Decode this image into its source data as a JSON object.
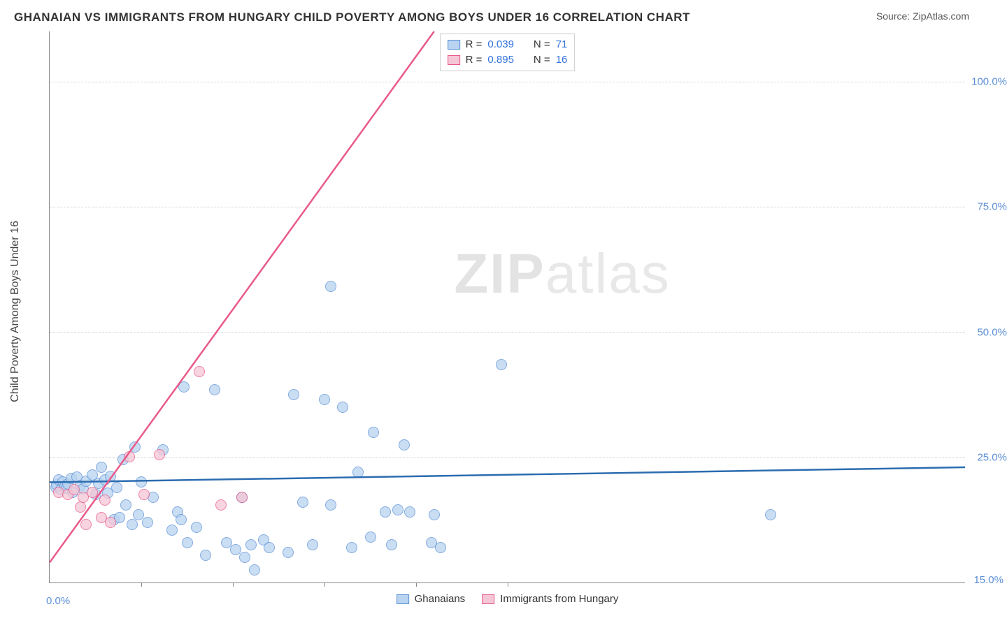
{
  "title": "GHANAIAN VS IMMIGRANTS FROM HUNGARY CHILD POVERTY AMONG BOYS UNDER 16 CORRELATION CHART",
  "source": "Source: ZipAtlas.com",
  "y_axis_title": "Child Poverty Among Boys Under 16",
  "watermark_zip": "ZIP",
  "watermark_atlas": "atlas",
  "chart": {
    "type": "scatter",
    "xlim": [
      0,
      15
    ],
    "ylim": [
      0,
      110
    ],
    "background_color": "#ffffff",
    "grid_color": "#d8d8d8",
    "y_ticks": [
      {
        "value": 25,
        "label": "25.0%"
      },
      {
        "value": 50,
        "label": "50.0%"
      },
      {
        "value": 75,
        "label": "75.0%"
      },
      {
        "value": 100,
        "label": "100.0%"
      }
    ],
    "x_tick_positions": [
      1.5,
      3.0,
      4.5,
      6.0,
      7.5
    ],
    "x_labels": [
      {
        "value": 0,
        "label": "0.0%"
      },
      {
        "value": 15,
        "label": "15.0%"
      }
    ],
    "point_radius": 8,
    "point_border_width": 1,
    "trend_line_width": 2.5
  },
  "series": [
    {
      "name": "Ghanaians",
      "fill": "#b8d4f0",
      "stroke": "#5b8fd6",
      "line_color": "#2b6cb0",
      "r_value": "0.039",
      "n_value": "71",
      "trend": {
        "x1": 0,
        "y1": 20,
        "x2": 15,
        "y2": 23
      },
      "points": [
        {
          "x": 0.1,
          "y": 19.0
        },
        {
          "x": 0.12,
          "y": 19.5
        },
        {
          "x": 0.15,
          "y": 20.5
        },
        {
          "x": 0.18,
          "y": 18.5
        },
        {
          "x": 0.22,
          "y": 20.0
        },
        {
          "x": 0.25,
          "y": 19.2
        },
        {
          "x": 0.28,
          "y": 18.8
        },
        {
          "x": 0.3,
          "y": 19.6
        },
        {
          "x": 0.35,
          "y": 20.8
        },
        {
          "x": 0.38,
          "y": 18.0
        },
        {
          "x": 0.45,
          "y": 21.0
        },
        {
          "x": 0.5,
          "y": 19.4
        },
        {
          "x": 0.55,
          "y": 18.6
        },
        {
          "x": 0.6,
          "y": 20.2
        },
        {
          "x": 0.7,
          "y": 21.5
        },
        {
          "x": 0.75,
          "y": 17.5
        },
        {
          "x": 0.8,
          "y": 19.8
        },
        {
          "x": 0.85,
          "y": 23.0
        },
        {
          "x": 0.9,
          "y": 20.5
        },
        {
          "x": 0.95,
          "y": 17.8
        },
        {
          "x": 1.0,
          "y": 21.2
        },
        {
          "x": 1.05,
          "y": 12.5
        },
        {
          "x": 1.1,
          "y": 19.0
        },
        {
          "x": 1.15,
          "y": 13.0
        },
        {
          "x": 1.2,
          "y": 24.5
        },
        {
          "x": 1.25,
          "y": 15.5
        },
        {
          "x": 1.35,
          "y": 11.5
        },
        {
          "x": 1.4,
          "y": 27.0
        },
        {
          "x": 1.45,
          "y": 13.5
        },
        {
          "x": 1.5,
          "y": 20.0
        },
        {
          "x": 1.6,
          "y": 12.0
        },
        {
          "x": 1.7,
          "y": 17.0
        },
        {
          "x": 1.85,
          "y": 26.5
        },
        {
          "x": 2.0,
          "y": 10.5
        },
        {
          "x": 2.1,
          "y": 14.0
        },
        {
          "x": 2.15,
          "y": 12.5
        },
        {
          "x": 2.2,
          "y": 39.0
        },
        {
          "x": 2.25,
          "y": 8.0
        },
        {
          "x": 2.4,
          "y": 11.0
        },
        {
          "x": 2.55,
          "y": 5.5
        },
        {
          "x": 2.7,
          "y": 38.5
        },
        {
          "x": 2.9,
          "y": 8.0
        },
        {
          "x": 3.05,
          "y": 6.5
        },
        {
          "x": 3.15,
          "y": 17.0
        },
        {
          "x": 3.2,
          "y": 5.0
        },
        {
          "x": 3.3,
          "y": 7.5
        },
        {
          "x": 3.35,
          "y": 2.5
        },
        {
          "x": 3.5,
          "y": 8.5
        },
        {
          "x": 3.6,
          "y": 7.0
        },
        {
          "x": 3.9,
          "y": 6.0
        },
        {
          "x": 4.0,
          "y": 37.5
        },
        {
          "x": 4.15,
          "y": 16.0
        },
        {
          "x": 4.3,
          "y": 7.5
        },
        {
          "x": 4.5,
          "y": 36.5
        },
        {
          "x": 4.6,
          "y": 59.0
        },
        {
          "x": 4.6,
          "y": 15.5
        },
        {
          "x": 4.8,
          "y": 35.0
        },
        {
          "x": 4.95,
          "y": 7.0
        },
        {
          "x": 5.05,
          "y": 22.0
        },
        {
          "x": 5.25,
          "y": 9.0
        },
        {
          "x": 5.3,
          "y": 30.0
        },
        {
          "x": 5.5,
          "y": 14.0
        },
        {
          "x": 5.6,
          "y": 7.5
        },
        {
          "x": 5.7,
          "y": 14.5
        },
        {
          "x": 5.8,
          "y": 27.5
        },
        {
          "x": 5.9,
          "y": 14.0
        },
        {
          "x": 6.25,
          "y": 8.0
        },
        {
          "x": 6.3,
          "y": 13.5
        },
        {
          "x": 6.4,
          "y": 7.0
        },
        {
          "x": 7.4,
          "y": 43.5
        },
        {
          "x": 11.8,
          "y": 13.5
        }
      ]
    },
    {
      "name": "Immigrants from Hungary",
      "fill": "#f5c6d5",
      "stroke": "#e85a8a",
      "line_color": "#e85a8a",
      "r_value": "0.895",
      "n_value": "16",
      "trend": {
        "x1": 0,
        "y1": 4,
        "x2": 6.3,
        "y2": 110
      },
      "points": [
        {
          "x": 0.15,
          "y": 18.0
        },
        {
          "x": 0.3,
          "y": 17.5
        },
        {
          "x": 0.4,
          "y": 18.5
        },
        {
          "x": 0.5,
          "y": 15.0
        },
        {
          "x": 0.55,
          "y": 17.0
        },
        {
          "x": 0.6,
          "y": 11.5
        },
        {
          "x": 0.7,
          "y": 18.0
        },
        {
          "x": 0.85,
          "y": 13.0
        },
        {
          "x": 0.9,
          "y": 16.5
        },
        {
          "x": 1.0,
          "y": 12.0
        },
        {
          "x": 1.3,
          "y": 25.0
        },
        {
          "x": 1.55,
          "y": 17.5
        },
        {
          "x": 1.8,
          "y": 25.5
        },
        {
          "x": 2.45,
          "y": 42.0
        },
        {
          "x": 2.8,
          "y": 15.5
        },
        {
          "x": 3.15,
          "y": 17.0
        }
      ]
    }
  ],
  "legend_bottom": {
    "items": [
      {
        "label": "Ghanaians",
        "fill": "#b8d4f0",
        "stroke": "#5b8fd6"
      },
      {
        "label": "Immigrants from Hungary",
        "fill": "#f5c6d5",
        "stroke": "#e85a8a"
      }
    ]
  },
  "legend_top_labels": {
    "r": "R =",
    "n": "N ="
  }
}
